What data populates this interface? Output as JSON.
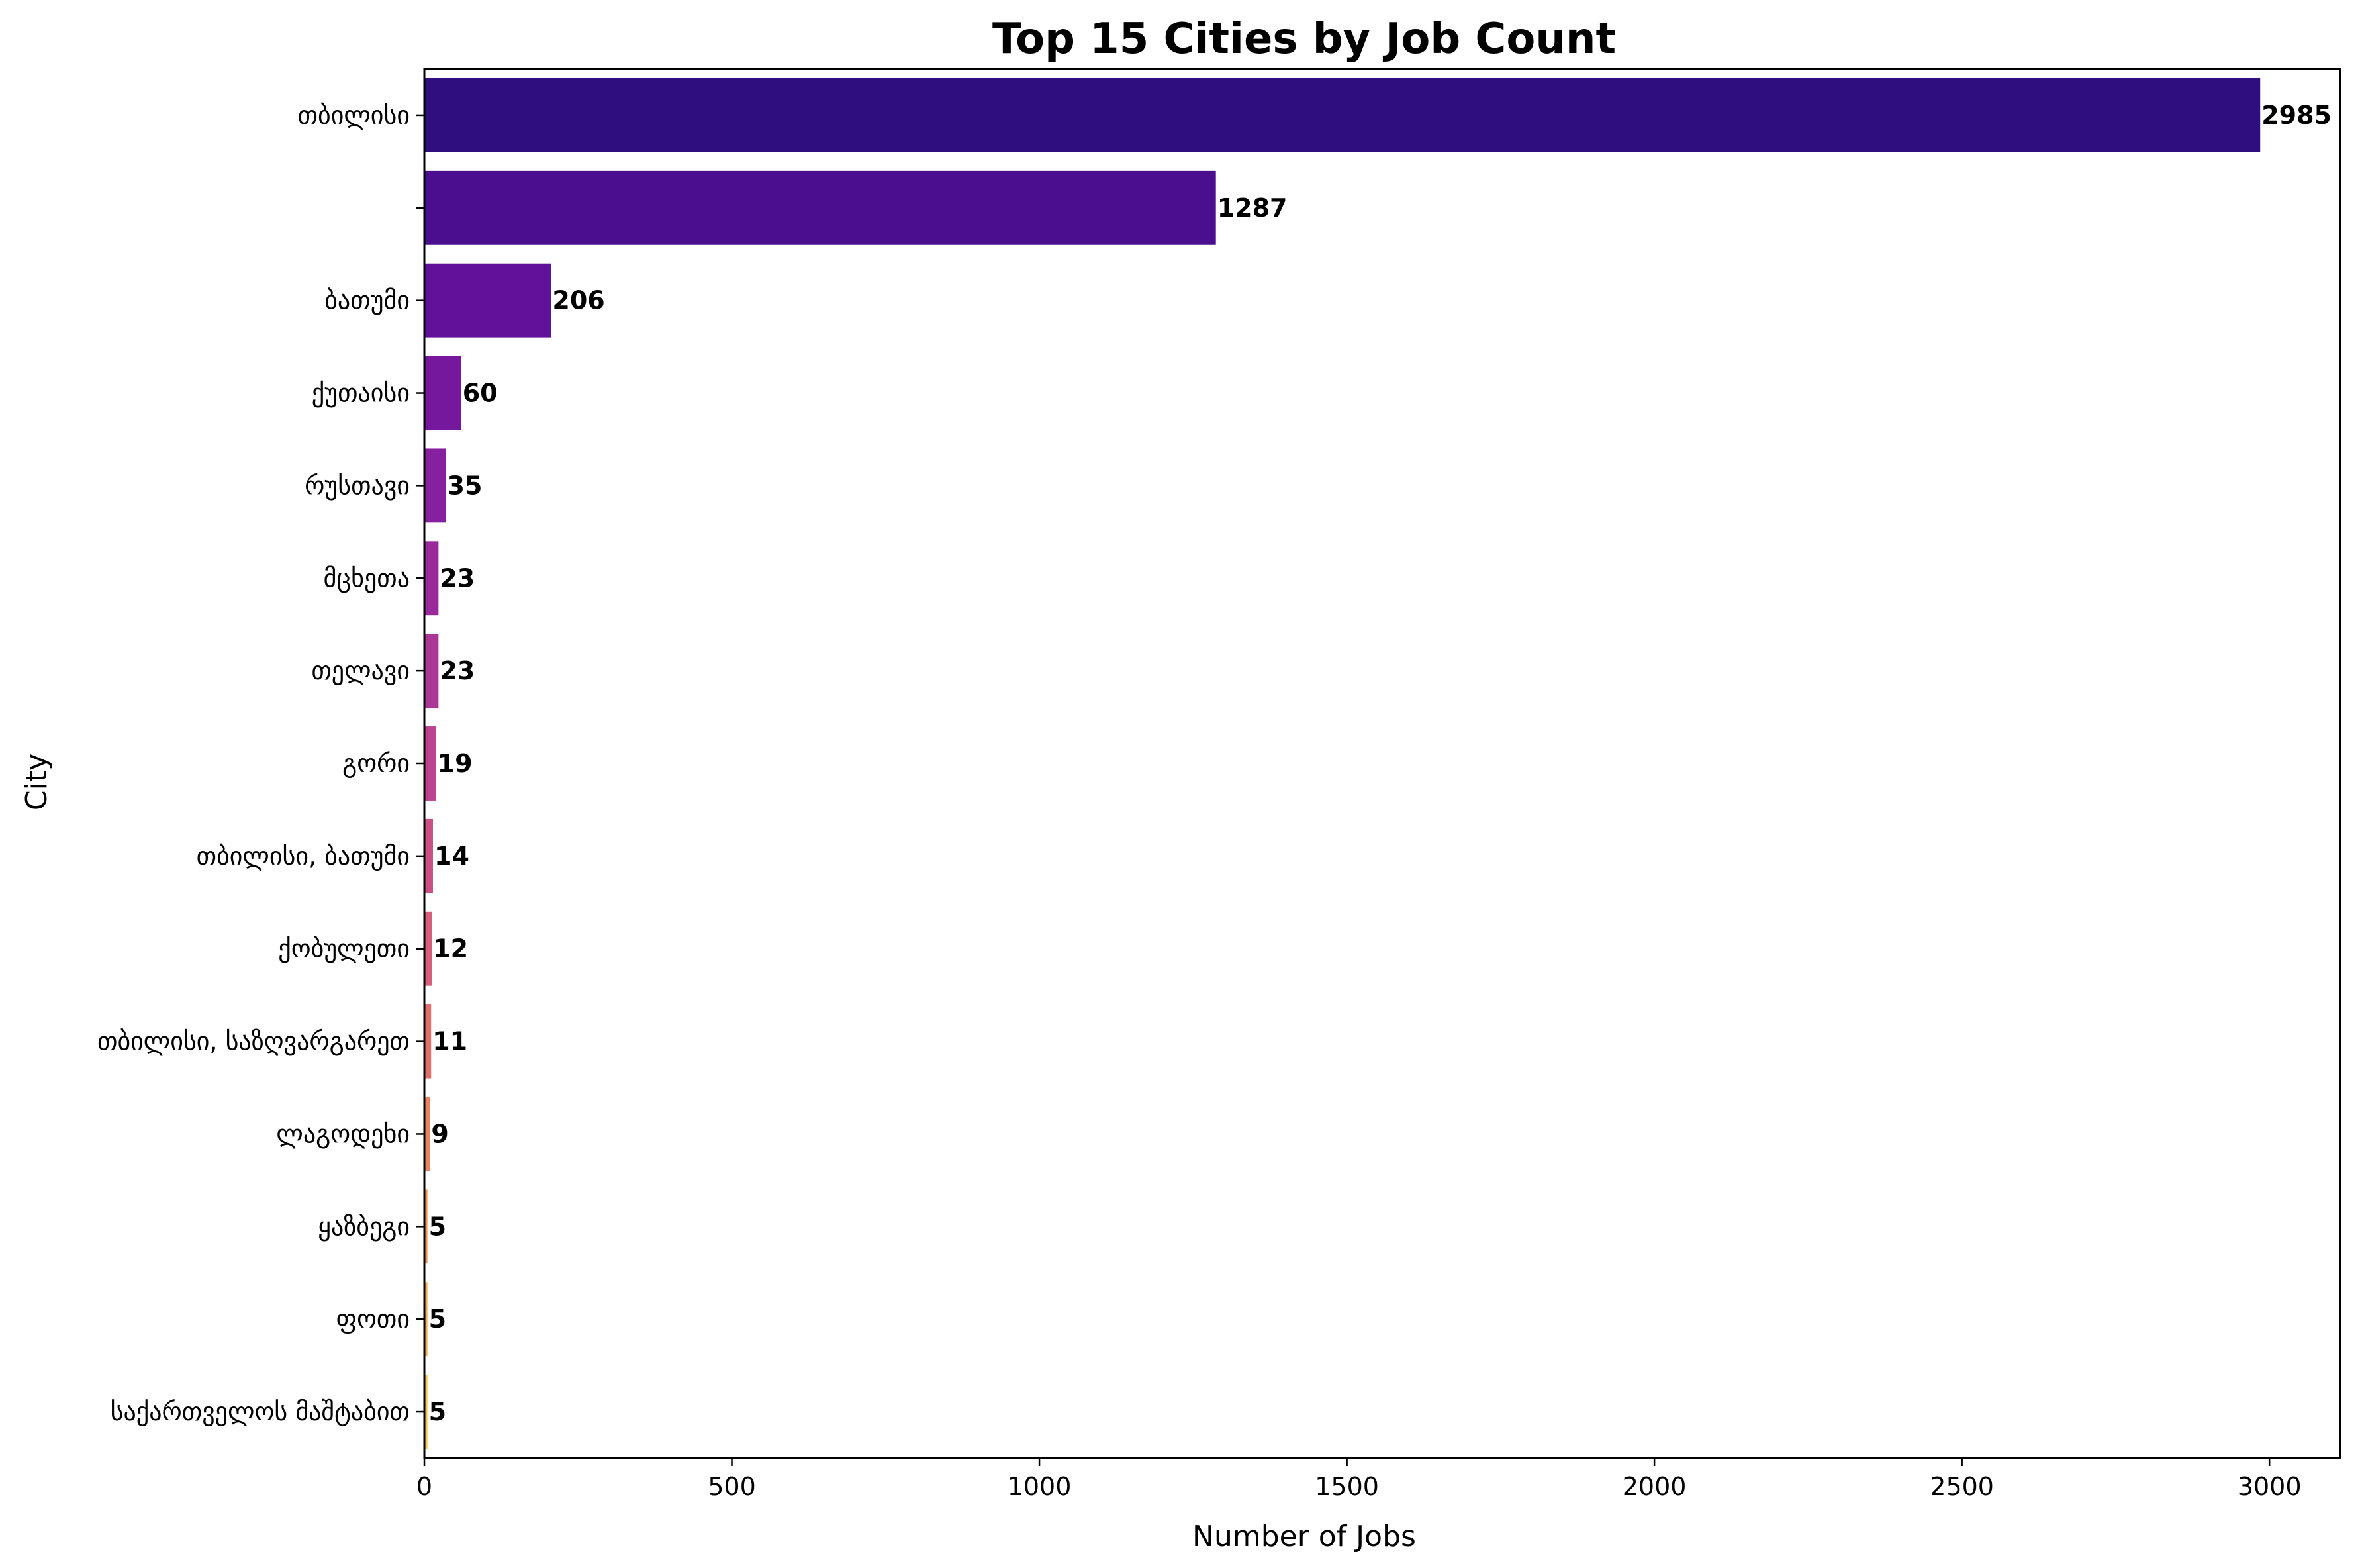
{
  "chart_data": {
    "type": "bar",
    "orientation": "horizontal",
    "title": "Top 15 Cities by Job Count",
    "xlabel": "Number of Jobs",
    "ylabel": "City",
    "xlim": [
      0,
      3115
    ],
    "xticks": [
      0,
      500,
      1000,
      1500,
      2000,
      2500,
      3000
    ],
    "grid": false,
    "categories": [
      "თბილისი",
      "",
      "ბათუმი",
      "ქუთაისი",
      "რუსთავი",
      "მცხეთა",
      "თელავი",
      "გორი",
      "თბილისი, ბათუმი",
      "ქობულეთი",
      "თბილისი, საზღვარგარეთ",
      "ლაგოდეხი",
      "ყაზბეგი",
      "ფოთი",
      "საქართველოს მაშტაბით"
    ],
    "values": [
      2985,
      1287,
      206,
      60,
      35,
      23,
      23,
      19,
      14,
      12,
      11,
      9,
      5,
      5,
      5
    ],
    "colors": [
      "#2f0f7f",
      "#4a0e8f",
      "#62119a",
      "#75189e",
      "#87209f",
      "#9a2a9b",
      "#ab3696",
      "#bc4390",
      "#ca5086",
      "#d65f7a",
      "#e06e6b",
      "#e98360",
      "#ef9856",
      "#f4ad4f",
      "#f7c44a"
    ]
  }
}
